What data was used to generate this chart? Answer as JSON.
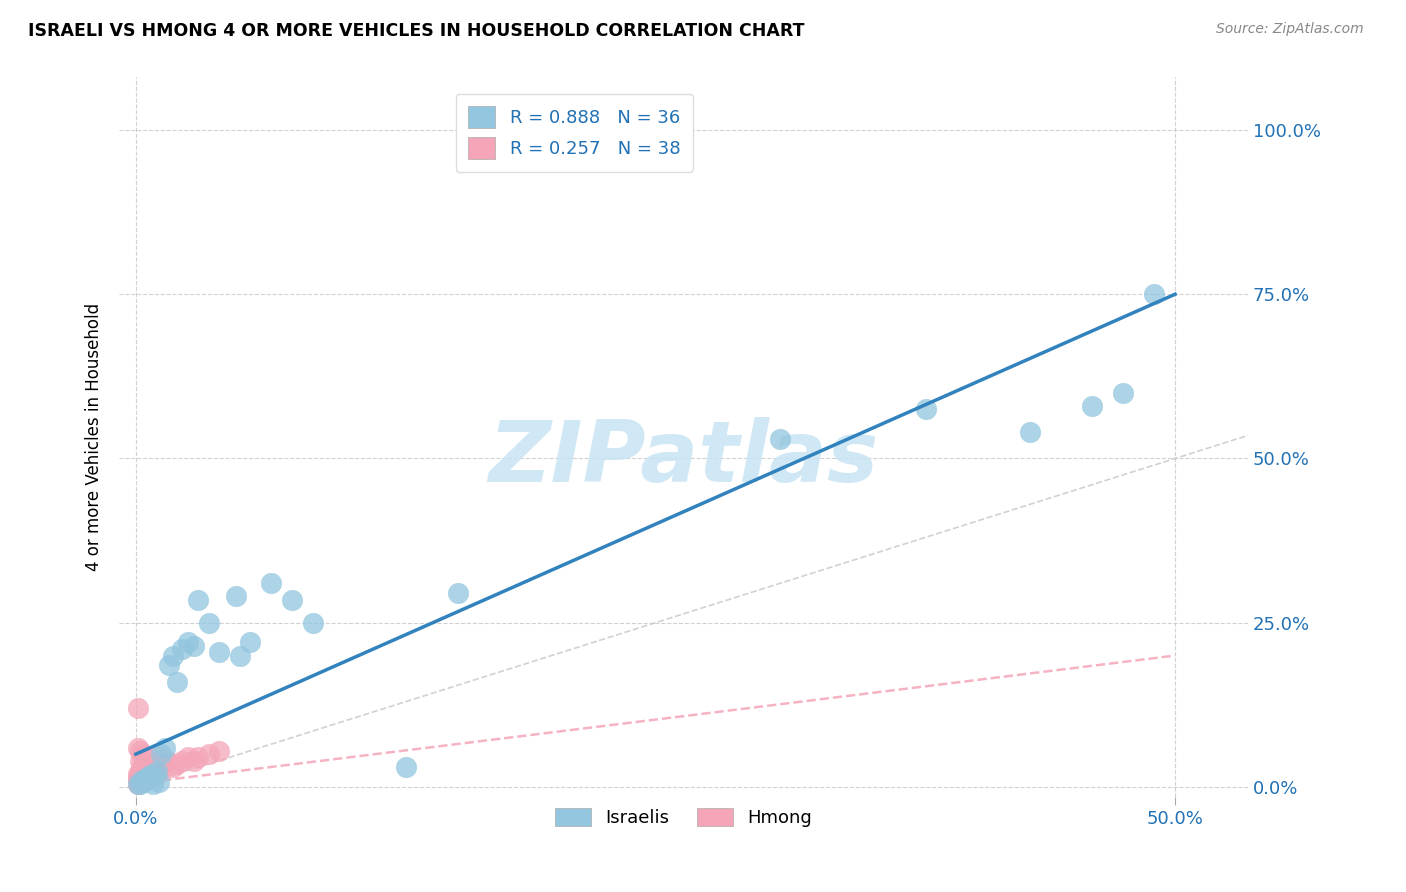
{
  "title": "ISRAELI VS HMONG 4 OR MORE VEHICLES IN HOUSEHOLD CORRELATION CHART",
  "source": "Source: ZipAtlas.com",
  "ylabel": "4 or more Vehicles in Household",
  "xlim": [
    -0.008,
    0.535
  ],
  "ylim": [
    -0.015,
    1.08
  ],
  "x_tick_vals": [
    0.0,
    0.5
  ],
  "x_tick_labels": [
    "0.0%",
    "50.0%"
  ],
  "y_tick_vals": [
    0.0,
    0.25,
    0.5,
    0.75,
    1.0
  ],
  "y_tick_labels": [
    "0.0%",
    "25.0%",
    "50.0%",
    "75.0%",
    "100.0%"
  ],
  "watermark_text": "ZIPatlas",
  "israeli_R": 0.888,
  "israeli_N": 36,
  "hmong_R": 0.257,
  "hmong_N": 38,
  "israeli_color": "#92c5de",
  "hmong_color": "#f4a6b8",
  "israeli_line_color": "#3182bd",
  "hmong_line_color": "#f4a6b8",
  "diagonal_color": "#cccccc",
  "israeli_x": [
    0.001,
    0.002,
    0.003,
    0.004,
    0.005,
    0.006,
    0.007,
    0.008,
    0.009,
    0.01,
    0.011,
    0.012,
    0.014,
    0.016,
    0.018,
    0.02,
    0.022,
    0.025,
    0.028,
    0.03,
    0.035,
    0.04,
    0.048,
    0.05,
    0.055,
    0.065,
    0.075,
    0.085,
    0.13,
    0.155,
    0.31,
    0.38,
    0.43,
    0.46,
    0.475,
    0.49
  ],
  "israeli_y": [
    0.005,
    0.005,
    0.01,
    0.008,
    0.012,
    0.015,
    0.018,
    0.005,
    0.02,
    0.025,
    0.008,
    0.05,
    0.06,
    0.185,
    0.2,
    0.16,
    0.21,
    0.22,
    0.215,
    0.285,
    0.25,
    0.205,
    0.29,
    0.2,
    0.22,
    0.31,
    0.285,
    0.25,
    0.03,
    0.295,
    0.53,
    0.575,
    0.54,
    0.58,
    0.6,
    0.75
  ],
  "hmong_x": [
    0.001,
    0.001,
    0.001,
    0.001,
    0.001,
    0.001,
    0.002,
    0.002,
    0.002,
    0.002,
    0.003,
    0.003,
    0.003,
    0.004,
    0.004,
    0.005,
    0.005,
    0.005,
    0.006,
    0.006,
    0.007,
    0.007,
    0.008,
    0.009,
    0.01,
    0.01,
    0.011,
    0.012,
    0.013,
    0.015,
    0.018,
    0.02,
    0.022,
    0.025,
    0.028,
    0.03,
    0.035,
    0.04
  ],
  "hmong_y": [
    0.005,
    0.01,
    0.015,
    0.02,
    0.06,
    0.12,
    0.008,
    0.025,
    0.04,
    0.055,
    0.01,
    0.03,
    0.05,
    0.015,
    0.035,
    0.01,
    0.02,
    0.04,
    0.015,
    0.03,
    0.02,
    0.04,
    0.025,
    0.03,
    0.02,
    0.045,
    0.03,
    0.025,
    0.035,
    0.04,
    0.03,
    0.035,
    0.04,
    0.045,
    0.04,
    0.045,
    0.05,
    0.055
  ],
  "israeli_line_x": [
    0.0,
    0.5
  ],
  "israeli_line_y": [
    0.05,
    0.75
  ],
  "hmong_line_x": [
    0.0,
    0.5
  ],
  "hmong_line_y": [
    0.005,
    0.2
  ]
}
